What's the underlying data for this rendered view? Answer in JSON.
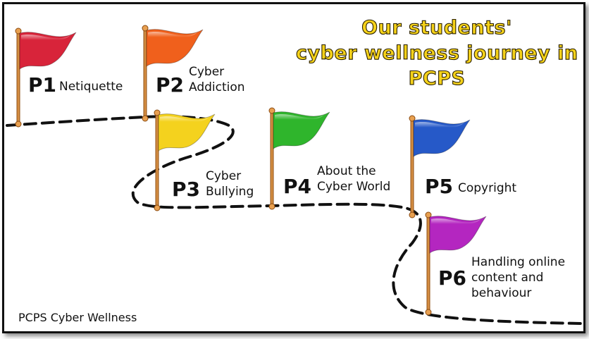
{
  "title_lines": [
    "Our students'",
    "cyber wellness journey in",
    "PCPS"
  ],
  "footer": "PCPS Cyber Wellness",
  "stages": [
    {
      "code": "P1",
      "topic": "Netiquette",
      "color": "#d8243a"
    },
    {
      "code": "P2",
      "topic": "Cyber\nAddiction",
      "color": "#f0601c"
    },
    {
      "code": "P3",
      "topic": "Cyber\nBullying",
      "color": "#f4d21e"
    },
    {
      "code": "P4",
      "topic": "About the\nCyber World",
      "color": "#2fb52c"
    },
    {
      "code": "P5",
      "topic": "Copyright",
      "color": "#2659c8"
    },
    {
      "code": "P6",
      "topic": "Handling online\ncontent and\nbehaviour",
      "color": "#b426c0"
    }
  ]
}
